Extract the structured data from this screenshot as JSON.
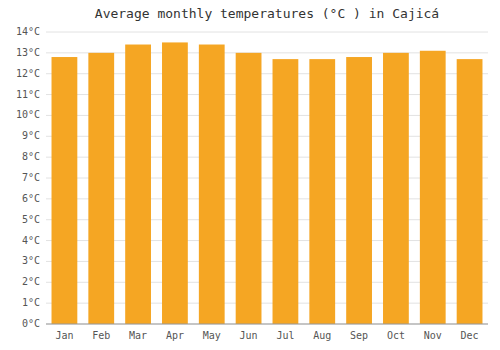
{
  "chart_data": {
    "type": "bar",
    "title": "Average monthly temperatures (°C ) in Cajicá",
    "categories": [
      "Jan",
      "Feb",
      "Mar",
      "Apr",
      "May",
      "Jun",
      "Jul",
      "Aug",
      "Sep",
      "Oct",
      "Nov",
      "Dec"
    ],
    "values": [
      12.8,
      13.0,
      13.4,
      13.5,
      13.4,
      13.0,
      12.7,
      12.7,
      12.8,
      13.0,
      13.1,
      12.7
    ],
    "color": "#F5A623",
    "ylim": [
      0,
      14
    ],
    "yticks": [
      {
        "value": 0,
        "label": "0°C"
      },
      {
        "value": 1,
        "label": "1°C"
      },
      {
        "value": 2,
        "label": "2°C"
      },
      {
        "value": 3,
        "label": "3°C"
      },
      {
        "value": 4,
        "label": "4°C"
      },
      {
        "value": 5,
        "label": "5°C"
      },
      {
        "value": 6,
        "label": "6°C"
      },
      {
        "value": 7,
        "label": "7°C"
      },
      {
        "value": 8,
        "label": "8°C"
      },
      {
        "value": 9,
        "label": "9°C"
      },
      {
        "value": 10,
        "label": "10°C"
      },
      {
        "value": 11,
        "label": "11°C"
      },
      {
        "value": 12,
        "label": "12°C"
      },
      {
        "value": 13,
        "label": "13°C"
      },
      {
        "value": 14,
        "label": "14°C"
      }
    ],
    "grid": true
  }
}
